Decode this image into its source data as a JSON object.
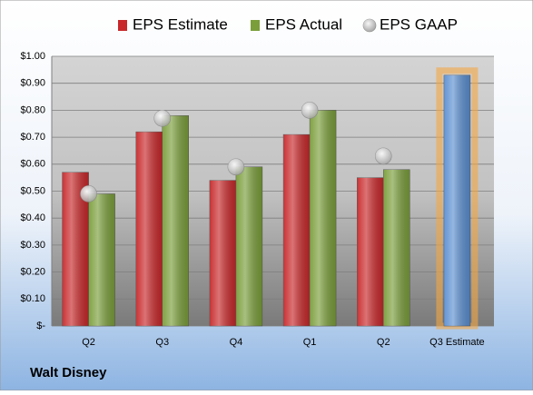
{
  "chart_data": {
    "type": "bar",
    "title": "Walt Disney",
    "categories": [
      "Q2",
      "Q3",
      "Q4",
      "Q1",
      "Q2",
      "Q3 Estimate"
    ],
    "series": [
      {
        "name": "EPS Estimate",
        "color": "#c8282a",
        "values": [
          0.57,
          0.72,
          0.54,
          0.71,
          0.55,
          0.93
        ],
        "colors": [
          "#c8282a",
          "#c8282a",
          "#c8282a",
          "#c8282a",
          "#c8282a",
          "#5b8fd0"
        ]
      },
      {
        "name": "EPS Actual",
        "color": "#7a9e3a",
        "values": [
          0.49,
          0.78,
          0.59,
          0.8,
          0.58,
          null
        ]
      },
      {
        "name": "EPS GAAP",
        "color": "#a8a8a8",
        "marker": "circle",
        "values": [
          0.49,
          0.77,
          0.59,
          0.8,
          0.63,
          null
        ]
      }
    ],
    "highlight_glow": "#f5a742",
    "ylim": [
      0,
      1
    ],
    "yticks": [
      {
        "value": 0,
        "label": "$-"
      },
      {
        "value": 0.1,
        "label": "$0.10"
      },
      {
        "value": 0.2,
        "label": "$0.20"
      },
      {
        "value": 0.3,
        "label": "$0.30"
      },
      {
        "value": 0.4,
        "label": "$0.40"
      },
      {
        "value": 0.5,
        "label": "$0.50"
      },
      {
        "value": 0.6,
        "label": "$0.60"
      },
      {
        "value": 0.7,
        "label": "$0.70"
      },
      {
        "value": 0.8,
        "label": "$0.80"
      },
      {
        "value": 0.9,
        "label": "$0.90"
      },
      {
        "value": 1,
        "label": "$1.00"
      }
    ],
    "grid": true,
    "legend": "top"
  }
}
